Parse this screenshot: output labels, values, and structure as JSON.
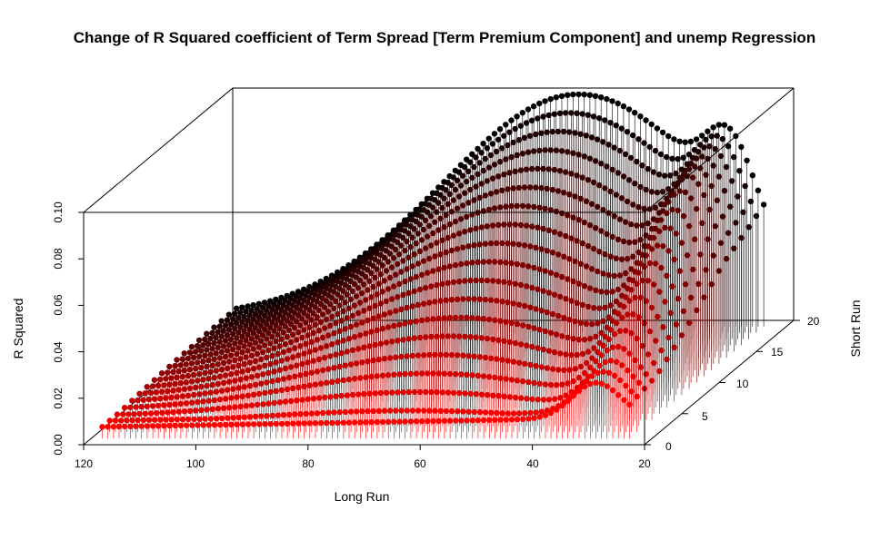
{
  "chart_data": {
    "type": "scatter",
    "title": "Change of R Squared coefficient of Term Spread [Term Premium Component] and unemp Regression",
    "xlabel": "Long Run",
    "ylabel": "Short Run",
    "zlabel": "R Squared",
    "xlim": [
      20,
      120
    ],
    "ylim": [
      0,
      20
    ],
    "zlim": [
      0,
      0.1
    ],
    "x_ticks": [
      "120",
      "100",
      "80",
      "60",
      "40",
      "20"
    ],
    "y_ticks": [
      "0",
      "5",
      "10",
      "15",
      "20"
    ],
    "z_ticks": [
      "0.00",
      "0.02",
      "0.04",
      "0.06",
      "0.08",
      "0.10"
    ],
    "x_range": [
      24,
      118
    ],
    "y_range": [
      1,
      19
    ],
    "surface_peak": {
      "x": 57,
      "short_run": 19,
      "z": 0.1
    },
    "color_gradient": {
      "low": "#ff0000",
      "high": "#000000"
    },
    "type_of_marks": "points with vertical drop lines",
    "box": true,
    "grid": false
  }
}
